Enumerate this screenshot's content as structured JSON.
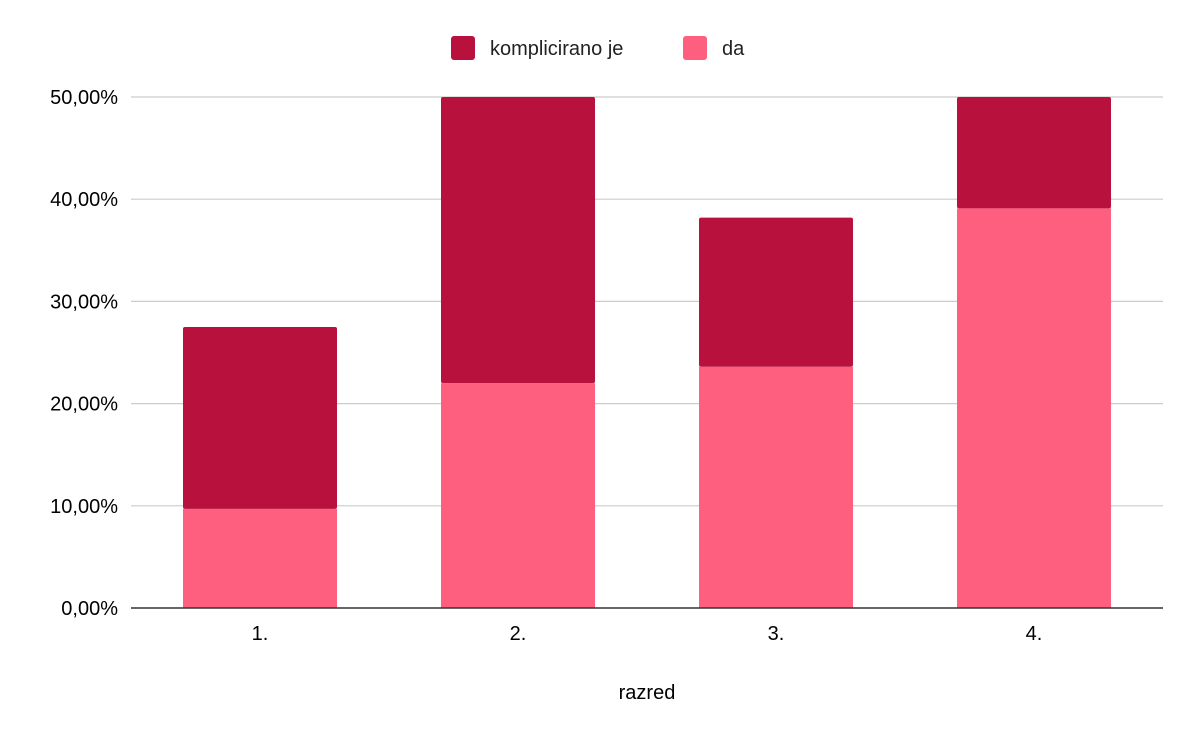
{
  "chart_data": {
    "type": "bar",
    "stacked": true,
    "categories": [
      "1.",
      "2.",
      "3.",
      "4."
    ],
    "series": [
      {
        "name": "da",
        "color": "#ff5f7e",
        "values": [
          9.7,
          22.0,
          23.6,
          39.1
        ]
      },
      {
        "name": "komplicirano je",
        "color": "#b9113e",
        "values": [
          17.8,
          28.0,
          14.6,
          10.9
        ]
      }
    ],
    "legend_order": [
      "komplicirano je",
      "da"
    ],
    "legend_position": "top",
    "title": "",
    "xlabel": "razred",
    "ylabel": "",
    "ylim": [
      0,
      50
    ],
    "yticks": [
      "0,00%",
      "10,00%",
      "20,00%",
      "30,00%",
      "40,00%",
      "50,00%"
    ],
    "grid": true
  }
}
